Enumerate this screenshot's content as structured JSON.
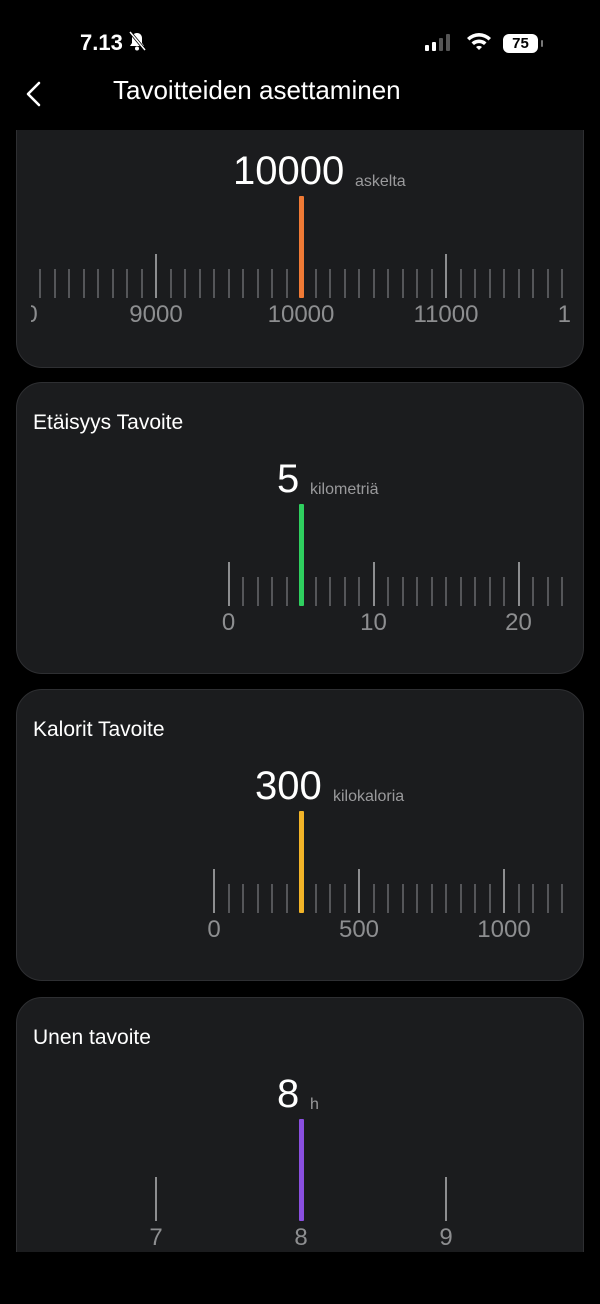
{
  "status_bar": {
    "time": "7.13",
    "battery": "75",
    "icons": [
      "bell-slash-icon",
      "signal-icon",
      "wifi-icon",
      "battery-icon"
    ]
  },
  "header": {
    "title": "Tavoitteiden asettaminen",
    "back_icon": "chevron-left-icon"
  },
  "goals": [
    {
      "id": "steps",
      "title": "",
      "value": "10000",
      "unit": "askelta",
      "current": 10000,
      "step": 100,
      "major_step": 1000,
      "min": null,
      "color": "#f07a35"
    },
    {
      "id": "distance",
      "title": "Etäisyys Tavoite",
      "value": "5",
      "unit": "kilometriä",
      "current": 5,
      "step": 1,
      "major_step": 10,
      "min": 0,
      "color": "#2fcf5f"
    },
    {
      "id": "calories",
      "title": "Kalorit Tavoite",
      "value": "300",
      "unit": "kilokaloria",
      "current": 300,
      "step": 50,
      "major_step": 500,
      "min": 0,
      "color": "#f2b428"
    },
    {
      "id": "sleep",
      "title": "Unen tavoite",
      "value": "8",
      "unit": "h",
      "current": 8,
      "step": 1,
      "major_step": 1,
      "min": null,
      "color": "#8a4fe0"
    }
  ]
}
